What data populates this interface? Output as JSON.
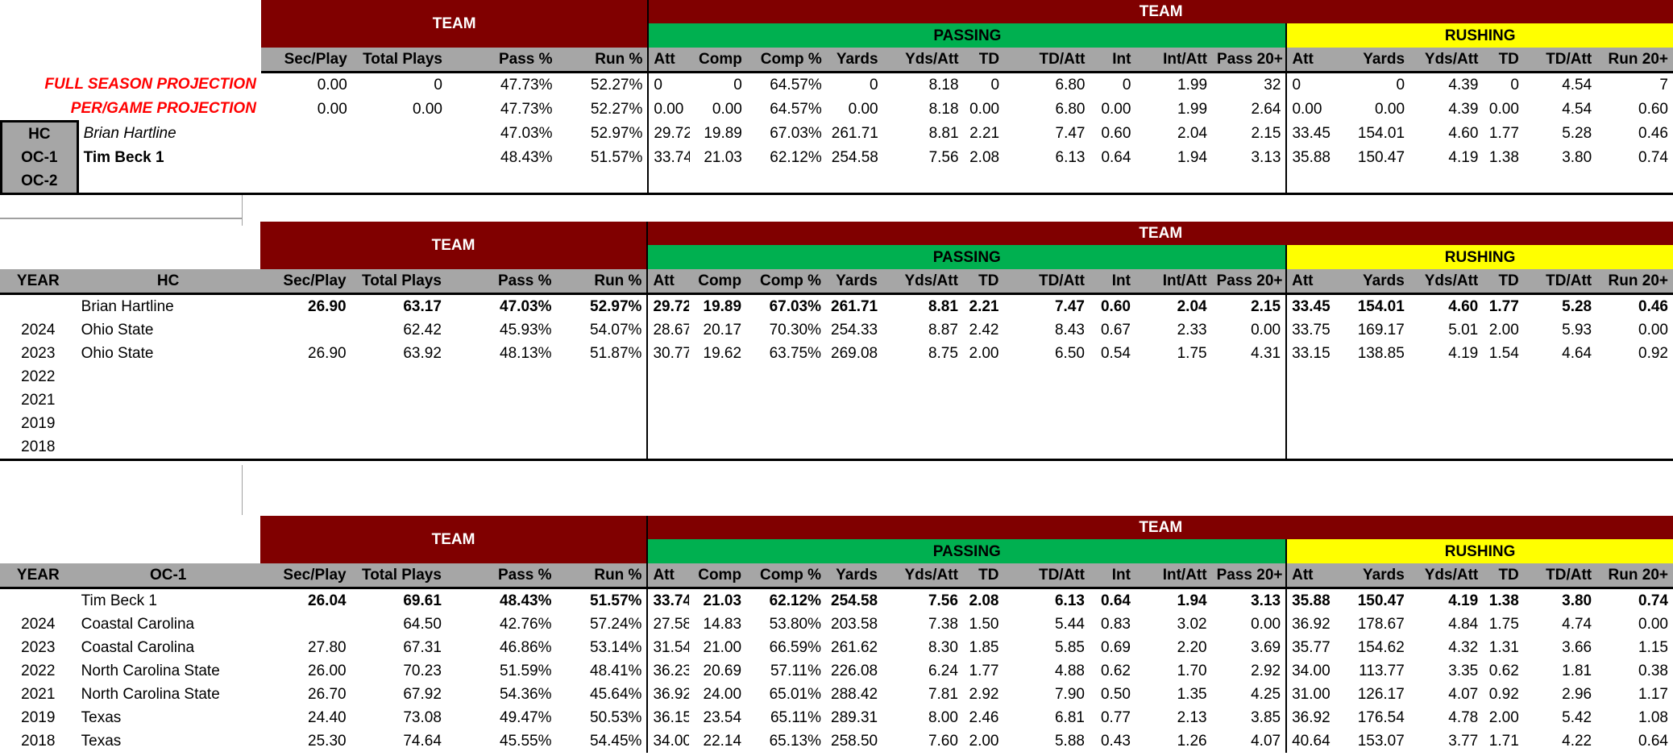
{
  "headers": {
    "team": "TEAM",
    "passing": "PASSING",
    "rushing": "RUSHING",
    "team_cols": [
      "Sec/Play",
      "Total Plays",
      "Pass %",
      "Run %"
    ],
    "pass_cols": [
      "Att",
      "Comp",
      "Comp %",
      "Yards",
      "Yds/Att",
      "TD",
      "TD/Att",
      "Int",
      "Int/Att",
      "Pass 20+"
    ],
    "rush_cols": [
      "Att",
      "Yards",
      "Yds/Att",
      "TD",
      "TD/Att",
      "Run 20+"
    ]
  },
  "projection": {
    "full_label": "FULL SEASON PROJECTION",
    "full": [
      "0.00",
      "0",
      "47.73%",
      "52.27%",
      "0",
      "0",
      "64.57%",
      "0",
      "8.18",
      "0",
      "6.80",
      "0",
      "1.99",
      "32",
      "0",
      "0",
      "4.39",
      "0",
      "4.54",
      "7"
    ],
    "pergame_label": "PER/GAME PROJECTION",
    "pergame": [
      "0.00",
      "0.00",
      "47.73%",
      "52.27%",
      "0.00",
      "0.00",
      "64.57%",
      "0.00",
      "8.18",
      "0.00",
      "6.80",
      "0.00",
      "1.99",
      "2.64",
      "0.00",
      "0.00",
      "4.39",
      "0.00",
      "4.54",
      "0.60"
    ],
    "roles": [
      {
        "role": "HC",
        "name": "Brian Hartline",
        "vals": [
          "",
          "",
          "47.03%",
          "52.97%",
          "29.72",
          "19.89",
          "67.03%",
          "261.71",
          "8.81",
          "2.21",
          "7.47",
          "0.60",
          "2.04",
          "2.15",
          "33.45",
          "154.01",
          "4.60",
          "1.77",
          "5.28",
          "0.46"
        ]
      },
      {
        "role": "OC-1",
        "name": "Tim Beck 1",
        "vals": [
          "",
          "",
          "48.43%",
          "51.57%",
          "33.74",
          "21.03",
          "62.12%",
          "254.58",
          "7.56",
          "2.08",
          "6.13",
          "0.64",
          "1.94",
          "3.13",
          "35.88",
          "150.47",
          "4.19",
          "1.38",
          "3.80",
          "0.74"
        ]
      },
      {
        "role": "OC-2",
        "name": "",
        "vals": [
          "",
          "",
          "",
          "",
          "",
          "",
          "",
          "",
          "",
          "",
          "",
          "",
          "",
          "",
          "",
          "",
          "",
          "",
          "",
          ""
        ]
      }
    ]
  },
  "hc_table": {
    "year_label": "YEAR",
    "name_label": "HC",
    "summary_name": "Brian Hartline",
    "summary": [
      "26.90",
      "63.17",
      "47.03%",
      "52.97%",
      "29.72",
      "19.89",
      "67.03%",
      "261.71",
      "8.81",
      "2.21",
      "7.47",
      "0.60",
      "2.04",
      "2.15",
      "33.45",
      "154.01",
      "4.60",
      "1.77",
      "5.28",
      "0.46"
    ],
    "rows": [
      {
        "year": "2024",
        "team": "Ohio State",
        "vals": [
          "",
          "62.42",
          "45.93%",
          "54.07%",
          "28.67",
          "20.17",
          "70.30%",
          "254.33",
          "8.87",
          "2.42",
          "8.43",
          "0.67",
          "2.33",
          "0.00",
          "33.75",
          "169.17",
          "5.01",
          "2.00",
          "5.93",
          "0.00"
        ]
      },
      {
        "year": "2023",
        "team": "Ohio State",
        "vals": [
          "26.90",
          "63.92",
          "48.13%",
          "51.87%",
          "30.77",
          "19.62",
          "63.75%",
          "269.08",
          "8.75",
          "2.00",
          "6.50",
          "0.54",
          "1.75",
          "4.31",
          "33.15",
          "138.85",
          "4.19",
          "1.54",
          "4.64",
          "0.92"
        ]
      },
      {
        "year": "2022",
        "team": "",
        "vals": [
          "",
          "",
          "",
          "",
          "",
          "",
          "",
          "",
          "",
          "",
          "",
          "",
          "",
          "",
          "",
          "",
          "",
          "",
          "",
          ""
        ]
      },
      {
        "year": "2021",
        "team": "",
        "vals": [
          "",
          "",
          "",
          "",
          "",
          "",
          "",
          "",
          "",
          "",
          "",
          "",
          "",
          "",
          "",
          "",
          "",
          "",
          "",
          ""
        ]
      },
      {
        "year": "2019",
        "team": "",
        "vals": [
          "",
          "",
          "",
          "",
          "",
          "",
          "",
          "",
          "",
          "",
          "",
          "",
          "",
          "",
          "",
          "",
          "",
          "",
          "",
          ""
        ]
      },
      {
        "year": "2018",
        "team": "",
        "vals": [
          "",
          "",
          "",
          "",
          "",
          "",
          "",
          "",
          "",
          "",
          "",
          "",
          "",
          "",
          "",
          "",
          "",
          "",
          "",
          ""
        ]
      }
    ]
  },
  "oc_table": {
    "year_label": "YEAR",
    "name_label": "OC-1",
    "summary_name": "Tim Beck 1",
    "summary": [
      "26.04",
      "69.61",
      "48.43%",
      "51.57%",
      "33.74",
      "21.03",
      "62.12%",
      "254.58",
      "7.56",
      "2.08",
      "6.13",
      "0.64",
      "1.94",
      "3.13",
      "35.88",
      "150.47",
      "4.19",
      "1.38",
      "3.80",
      "0.74"
    ],
    "rows": [
      {
        "year": "2024",
        "team": "Coastal Carolina",
        "vals": [
          "",
          "64.50",
          "42.76%",
          "57.24%",
          "27.58",
          "14.83",
          "53.80%",
          "203.58",
          "7.38",
          "1.50",
          "5.44",
          "0.83",
          "3.02",
          "0.00",
          "36.92",
          "178.67",
          "4.84",
          "1.75",
          "4.74",
          "0.00"
        ]
      },
      {
        "year": "2023",
        "team": "Coastal Carolina",
        "vals": [
          "27.80",
          "67.31",
          "46.86%",
          "53.14%",
          "31.54",
          "21.00",
          "66.59%",
          "261.62",
          "8.30",
          "1.85",
          "5.85",
          "0.69",
          "2.20",
          "3.69",
          "35.77",
          "154.62",
          "4.32",
          "1.31",
          "3.66",
          "1.15"
        ]
      },
      {
        "year": "2022",
        "team": "North Carolina State",
        "vals": [
          "26.00",
          "70.23",
          "51.59%",
          "48.41%",
          "36.23",
          "20.69",
          "57.11%",
          "226.08",
          "6.24",
          "1.77",
          "4.88",
          "0.62",
          "1.70",
          "2.92",
          "34.00",
          "113.77",
          "3.35",
          "0.62",
          "1.81",
          "0.38"
        ]
      },
      {
        "year": "2021",
        "team": "North Carolina State",
        "vals": [
          "26.70",
          "67.92",
          "54.36%",
          "45.64%",
          "36.92",
          "24.00",
          "65.01%",
          "288.42",
          "7.81",
          "2.92",
          "7.90",
          "0.50",
          "1.35",
          "4.25",
          "31.00",
          "126.17",
          "4.07",
          "0.92",
          "2.96",
          "1.17"
        ]
      },
      {
        "year": "2019",
        "team": "Texas",
        "vals": [
          "24.40",
          "73.08",
          "49.47%",
          "50.53%",
          "36.15",
          "23.54",
          "65.11%",
          "289.31",
          "8.00",
          "2.46",
          "6.81",
          "0.77",
          "2.13",
          "3.85",
          "36.92",
          "176.54",
          "4.78",
          "2.00",
          "5.42",
          "1.08"
        ]
      },
      {
        "year": "2018",
        "team": "Texas",
        "vals": [
          "25.30",
          "74.64",
          "45.55%",
          "54.45%",
          "34.00",
          "22.14",
          "65.13%",
          "258.50",
          "7.60",
          "2.00",
          "5.88",
          "0.43",
          "1.26",
          "4.07",
          "40.64",
          "153.07",
          "3.77",
          "1.71",
          "4.22",
          "0.64"
        ]
      }
    ]
  }
}
